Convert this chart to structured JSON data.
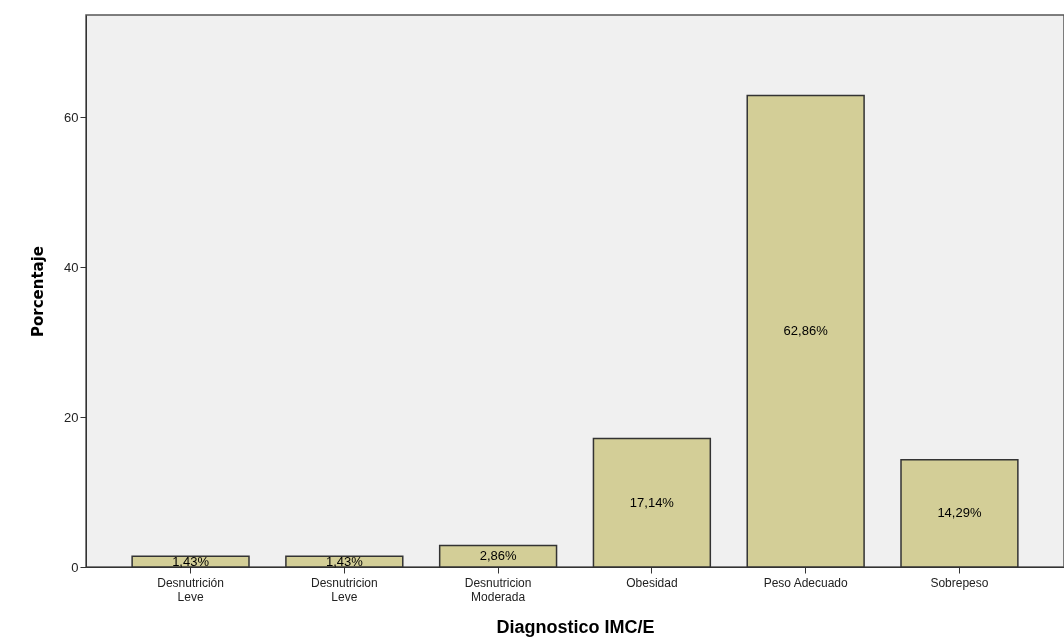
{
  "chart_data": {
    "type": "bar",
    "xlabel": "Diagnostico IMC/E",
    "ylabel": "Porcentaje",
    "categories": [
      "Desnutrición\nLeve",
      "Desnutricion\nLeve",
      "Desnutricion\nModerada",
      "Obesidad",
      "Peso Adecuado",
      "Sobrepeso"
    ],
    "values": [
      1.43,
      1.43,
      2.86,
      17.14,
      62.86,
      14.29
    ],
    "value_labels": [
      "1,43%",
      "1,43%",
      "2,86%",
      "17,14%",
      "62,86%",
      "14,29%"
    ],
    "color": "#d3ce97",
    "ylim": [
      0,
      73.6
    ],
    "yticks": [
      0,
      20,
      40,
      60
    ],
    "grid": false
  }
}
